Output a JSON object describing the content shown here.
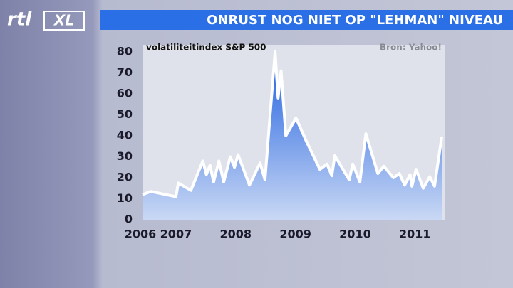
{
  "logo": {
    "brand": "rtl",
    "channel": "XL"
  },
  "chart_data": {
    "type": "area",
    "title": "ONRUST NOG NIET OP \"LEHMAN\" NIVEAU",
    "subtitle": "volatiliteitindex S&P 500",
    "source": "Bron: Yahoo!",
    "x_axis_start_label": "2006",
    "x": [
      2006.44,
      2006.58,
      2007.0,
      2007.04,
      2007.25,
      2007.45,
      2007.51,
      2007.57,
      2007.63,
      2007.72,
      2007.8,
      2007.91,
      2007.98,
      2008.04,
      2008.23,
      2008.41,
      2008.49,
      2008.66,
      2008.71,
      2008.76,
      2008.84,
      2009.01,
      2009.19,
      2009.41,
      2009.53,
      2009.61,
      2009.66,
      2009.9,
      2009.96,
      2010.08,
      2010.18,
      2010.38,
      2010.48,
      2010.64,
      2010.74,
      2010.83,
      2010.92,
      2010.95,
      2011.02,
      2011.14,
      2011.25,
      2011.33,
      2011.45
    ],
    "values": [
      12,
      13.5,
      11,
      17.5,
      14,
      28,
      21.5,
      26,
      18,
      28,
      18,
      30,
      25,
      31,
      16.5,
      27,
      19,
      80,
      58,
      71,
      40,
      48.5,
      37,
      24,
      26.5,
      21,
      30.5,
      19,
      26.5,
      18,
      41,
      22,
      25.5,
      20,
      22,
      16.5,
      21.5,
      16,
      24,
      15,
      20.5,
      16,
      39.5
    ],
    "xlim": [
      2006.44,
      2011.45
    ],
    "xticks": [
      2007,
      2008,
      2009,
      2010,
      2011
    ],
    "ylim": [
      0,
      80
    ],
    "yticks": [
      0,
      10,
      20,
      30,
      40,
      50,
      60,
      70,
      80
    ],
    "color": "#2f74e8",
    "line_color": "#ffffff"
  }
}
